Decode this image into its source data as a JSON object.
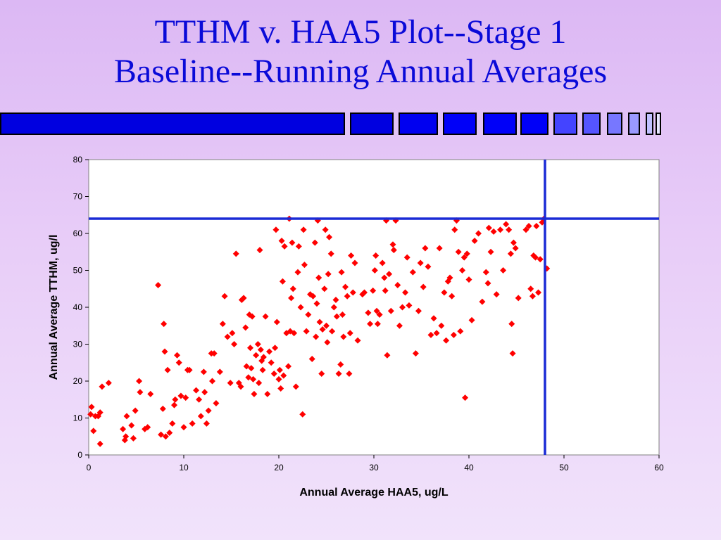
{
  "slide": {
    "title_line1": "TTHM v. HAA5 Plot--Stage 1",
    "title_line2": "Baseline--Running Annual Averages"
  },
  "decor": {
    "blocks": [
      "#0000e0",
      "#0000e0",
      "#0000f0",
      "#0000f8",
      "#0000f8",
      "#0000f8",
      "#4444ff",
      "#5555ff",
      "#7777ff",
      "#9a9aff",
      "#c0c0ff",
      "#e6e6ff"
    ]
  },
  "colors": {
    "marker": "#ff0000",
    "reference_line": "#1a2bd6"
  },
  "chart_data": {
    "type": "scatter",
    "xlabel": "Annual Average HAA5, ug/L",
    "ylabel": "Annual Average TTHM, ug/l",
    "xlim": [
      0,
      60
    ],
    "ylim": [
      0,
      80
    ],
    "xticks": [
      0,
      10,
      20,
      30,
      40,
      50,
      60
    ],
    "yticks": [
      0,
      10,
      20,
      30,
      40,
      50,
      60,
      70,
      80
    ],
    "grid": false,
    "reference_lines": {
      "horizontal_y": 64,
      "vertical_x": 48
    },
    "points": [
      [
        0.2,
        11
      ],
      [
        0.3,
        13
      ],
      [
        0.5,
        6.5
      ],
      [
        0.7,
        10.5
      ],
      [
        1.0,
        10.5
      ],
      [
        1.2,
        11.5
      ],
      [
        1.2,
        3
      ],
      [
        1.4,
        18.5
      ],
      [
        2.1,
        19.5
      ],
      [
        3.6,
        7
      ],
      [
        3.8,
        4
      ],
      [
        3.9,
        5
      ],
      [
        4.0,
        10.5
      ],
      [
        4.5,
        8
      ],
      [
        4.7,
        4.5
      ],
      [
        4.9,
        12
      ],
      [
        5.3,
        20
      ],
      [
        5.4,
        17
      ],
      [
        5.9,
        7
      ],
      [
        6.2,
        7.5
      ],
      [
        6.5,
        16.5
      ],
      [
        7.3,
        46
      ],
      [
        7.6,
        5.5
      ],
      [
        7.8,
        12.5
      ],
      [
        7.9,
        35.5
      ],
      [
        8.0,
        28
      ],
      [
        8.1,
        5
      ],
      [
        8.3,
        23
      ],
      [
        8.5,
        6
      ],
      [
        8.8,
        8.5
      ],
      [
        9.0,
        13.5
      ],
      [
        9.1,
        15
      ],
      [
        9.3,
        27
      ],
      [
        9.5,
        25
      ],
      [
        9.7,
        16
      ],
      [
        10.0,
        7.5
      ],
      [
        10.2,
        15.5
      ],
      [
        10.4,
        23
      ],
      [
        10.6,
        23
      ],
      [
        10.9,
        8.5
      ],
      [
        11.3,
        17.5
      ],
      [
        11.6,
        15
      ],
      [
        11.8,
        10.5
      ],
      [
        12.1,
        22.5
      ],
      [
        12.2,
        17
      ],
      [
        12.4,
        8.5
      ],
      [
        12.6,
        12
      ],
      [
        12.9,
        27.5
      ],
      [
        13.0,
        20
      ],
      [
        13.2,
        27.5
      ],
      [
        13.4,
        14
      ],
      [
        13.8,
        22.5
      ],
      [
        14.1,
        35.5
      ],
      [
        14.3,
        43
      ],
      [
        14.6,
        32
      ],
      [
        14.9,
        19.5
      ],
      [
        15.1,
        33
      ],
      [
        15.3,
        30
      ],
      [
        15.5,
        54.5
      ],
      [
        15.8,
        19.5
      ],
      [
        16.0,
        18.5
      ],
      [
        16.1,
        42
      ],
      [
        16.3,
        42.5
      ],
      [
        16.5,
        34.5
      ],
      [
        16.6,
        24
      ],
      [
        16.8,
        21
      ],
      [
        16.9,
        38
      ],
      [
        17.0,
        29
      ],
      [
        17.1,
        23.5
      ],
      [
        17.2,
        37.5
      ],
      [
        17.3,
        20.5
      ],
      [
        17.4,
        16.5
      ],
      [
        17.6,
        27
      ],
      [
        17.8,
        30
      ],
      [
        17.9,
        19.5
      ],
      [
        18.0,
        55.5
      ],
      [
        18.1,
        28.5
      ],
      [
        18.2,
        25.5
      ],
      [
        18.3,
        23
      ],
      [
        18.4,
        26.5
      ],
      [
        18.6,
        37.5
      ],
      [
        18.8,
        16.5
      ],
      [
        19.0,
        28
      ],
      [
        19.2,
        25
      ],
      [
        19.5,
        22
      ],
      [
        19.6,
        29
      ],
      [
        19.7,
        61
      ],
      [
        19.8,
        36
      ],
      [
        20.0,
        20.5
      ],
      [
        20.1,
        23
      ],
      [
        20.2,
        18
      ],
      [
        20.3,
        58
      ],
      [
        20.4,
        47
      ],
      [
        20.5,
        21.5
      ],
      [
        20.6,
        56.5
      ],
      [
        20.8,
        33
      ],
      [
        21.0,
        24
      ],
      [
        21.1,
        64
      ],
      [
        21.2,
        33.5
      ],
      [
        21.3,
        42.5
      ],
      [
        21.4,
        57.5
      ],
      [
        21.5,
        45
      ],
      [
        21.6,
        33
      ],
      [
        21.8,
        18.5
      ],
      [
        22.0,
        49.5
      ],
      [
        22.1,
        56.5
      ],
      [
        22.3,
        40
      ],
      [
        22.5,
        11
      ],
      [
        22.6,
        61
      ],
      [
        22.7,
        51.5
      ],
      [
        22.9,
        33.5
      ],
      [
        23.1,
        38
      ],
      [
        23.3,
        43.5
      ],
      [
        23.5,
        26
      ],
      [
        23.6,
        43
      ],
      [
        23.8,
        57.5
      ],
      [
        23.9,
        32
      ],
      [
        24.0,
        41
      ],
      [
        24.1,
        63.5
      ],
      [
        24.2,
        48
      ],
      [
        24.3,
        36
      ],
      [
        24.5,
        22
      ],
      [
        24.6,
        34
      ],
      [
        24.8,
        45
      ],
      [
        24.9,
        61
      ],
      [
        25.0,
        35
      ],
      [
        25.1,
        30.5
      ],
      [
        25.2,
        49
      ],
      [
        25.3,
        59
      ],
      [
        25.5,
        54.5
      ],
      [
        25.6,
        33.5
      ],
      [
        25.8,
        40
      ],
      [
        26.0,
        42
      ],
      [
        26.1,
        37.5
      ],
      [
        26.3,
        22
      ],
      [
        26.5,
        24.5
      ],
      [
        26.6,
        49.5
      ],
      [
        26.7,
        38
      ],
      [
        26.8,
        32
      ],
      [
        27.0,
        45.5
      ],
      [
        27.2,
        43
      ],
      [
        27.4,
        22
      ],
      [
        27.5,
        33
      ],
      [
        27.6,
        54
      ],
      [
        27.8,
        44
      ],
      [
        28.0,
        52
      ],
      [
        28.3,
        31
      ],
      [
        28.8,
        43.5
      ],
      [
        29.0,
        44
      ],
      [
        29.4,
        38.5
      ],
      [
        29.6,
        35.5
      ],
      [
        29.9,
        44.5
      ],
      [
        30.1,
        50
      ],
      [
        30.2,
        54
      ],
      [
        30.3,
        39
      ],
      [
        30.4,
        35.5
      ],
      [
        30.6,
        38
      ],
      [
        30.9,
        52
      ],
      [
        31.1,
        48
      ],
      [
        31.2,
        44.5
      ],
      [
        31.3,
        63.5
      ],
      [
        31.4,
        27
      ],
      [
        31.6,
        49
      ],
      [
        31.8,
        39
      ],
      [
        32.0,
        57
      ],
      [
        32.1,
        55.5
      ],
      [
        32.3,
        63.5
      ],
      [
        32.5,
        46
      ],
      [
        32.7,
        35
      ],
      [
        33.0,
        40
      ],
      [
        33.3,
        44
      ],
      [
        33.5,
        53.5
      ],
      [
        33.7,
        40.5
      ],
      [
        34.1,
        49.5
      ],
      [
        34.4,
        27.5
      ],
      [
        34.7,
        39
      ],
      [
        34.9,
        52
      ],
      [
        35.2,
        45.5
      ],
      [
        35.4,
        56
      ],
      [
        35.7,
        51
      ],
      [
        36.0,
        32.5
      ],
      [
        36.3,
        37
      ],
      [
        36.6,
        33
      ],
      [
        36.9,
        56
      ],
      [
        37.1,
        35
      ],
      [
        37.4,
        44
      ],
      [
        37.6,
        31
      ],
      [
        37.8,
        47
      ],
      [
        38.0,
        48
      ],
      [
        38.2,
        43
      ],
      [
        38.4,
        32.5
      ],
      [
        38.5,
        61
      ],
      [
        38.7,
        63.5
      ],
      [
        38.9,
        55
      ],
      [
        39.1,
        33.5
      ],
      [
        39.3,
        50
      ],
      [
        39.5,
        53.5
      ],
      [
        39.6,
        15.5
      ],
      [
        39.8,
        54.5
      ],
      [
        40.0,
        47.5
      ],
      [
        40.3,
        36.5
      ],
      [
        40.6,
        58
      ],
      [
        41.0,
        60
      ],
      [
        41.4,
        41.5
      ],
      [
        41.8,
        49.5
      ],
      [
        42.0,
        46.5
      ],
      [
        42.1,
        61.5
      ],
      [
        42.3,
        55
      ],
      [
        42.6,
        60.5
      ],
      [
        42.9,
        43.5
      ],
      [
        43.3,
        61
      ],
      [
        43.6,
        50
      ],
      [
        43.9,
        62.5
      ],
      [
        44.2,
        61
      ],
      [
        44.4,
        54.5
      ],
      [
        44.5,
        35.5
      ],
      [
        44.6,
        27.5
      ],
      [
        44.7,
        57.5
      ],
      [
        44.9,
        56
      ],
      [
        45.2,
        42.5
      ],
      [
        46.0,
        61
      ],
      [
        46.3,
        62
      ],
      [
        46.5,
        45
      ],
      [
        46.7,
        43
      ],
      [
        46.8,
        54
      ],
      [
        47.0,
        53.5
      ],
      [
        47.1,
        62
      ],
      [
        47.3,
        44
      ],
      [
        47.5,
        53
      ],
      [
        47.7,
        63
      ],
      [
        47.9,
        64
      ],
      [
        48.2,
        50.5
      ]
    ]
  }
}
